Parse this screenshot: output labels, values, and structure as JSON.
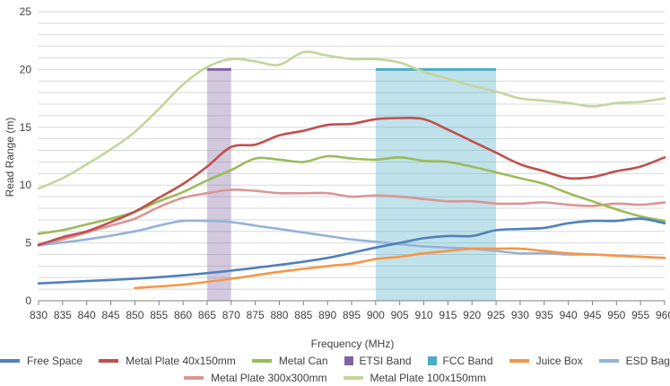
{
  "chart_data": {
    "type": "line",
    "xlabel": "Frequency (MHz)",
    "ylabel": "Read Range (m)",
    "xlim": [
      830,
      960
    ],
    "ylim": [
      0,
      25
    ],
    "xticks": [
      830,
      835,
      840,
      845,
      850,
      855,
      860,
      865,
      870,
      875,
      880,
      885,
      890,
      895,
      900,
      905,
      910,
      915,
      920,
      925,
      930,
      935,
      940,
      945,
      950,
      955,
      960
    ],
    "yticks": [
      0,
      5,
      10,
      15,
      20,
      25
    ],
    "grid": true,
    "legend_position": "bottom",
    "bands": [
      {
        "name": "ETSI Band",
        "x_range": [
          865,
          870
        ],
        "value": 20,
        "color": "#8064a2"
      },
      {
        "name": "FCC Band",
        "x_range": [
          900,
          925
        ],
        "value": 20,
        "color": "#4bacc6"
      }
    ],
    "series": [
      {
        "name": "Free Space",
        "color": "#4f81bd",
        "x": [
          830,
          840,
          850,
          860,
          870,
          880,
          890,
          900,
          905,
          910,
          915,
          920,
          925,
          930,
          935,
          940,
          945,
          950,
          955,
          960
        ],
        "y": [
          1.5,
          1.7,
          1.9,
          2.2,
          2.6,
          3.1,
          3.7,
          4.6,
          5.0,
          5.4,
          5.6,
          5.6,
          6.1,
          6.2,
          6.3,
          6.7,
          6.9,
          6.9,
          7.1,
          6.7
        ]
      },
      {
        "name": "Metal Plate 40x150mm",
        "color": "#c0504d",
        "x": [
          830,
          835,
          840,
          845,
          850,
          855,
          860,
          865,
          870,
          875,
          880,
          885,
          890,
          895,
          900,
          905,
          910,
          915,
          920,
          925,
          930,
          935,
          940,
          945,
          950,
          955,
          960
        ],
        "y": [
          4.8,
          5.5,
          6.0,
          6.8,
          7.7,
          8.9,
          10.1,
          11.6,
          13.3,
          13.5,
          14.3,
          14.7,
          15.2,
          15.3,
          15.7,
          15.8,
          15.7,
          14.8,
          13.8,
          12.8,
          11.8,
          11.2,
          10.6,
          10.7,
          11.2,
          11.6,
          12.4
        ]
      },
      {
        "name": "Metal Can",
        "color": "#9bbb59",
        "x": [
          830,
          835,
          840,
          845,
          850,
          855,
          860,
          865,
          870,
          875,
          880,
          885,
          890,
          895,
          900,
          905,
          910,
          915,
          920,
          925,
          930,
          935,
          940,
          945,
          950,
          955,
          960
        ],
        "y": [
          5.8,
          6.1,
          6.6,
          7.1,
          7.7,
          8.6,
          9.4,
          10.4,
          11.3,
          12.3,
          12.2,
          12.0,
          12.5,
          12.3,
          12.2,
          12.4,
          12.1,
          12.0,
          11.6,
          11.1,
          10.6,
          10.1,
          9.3,
          8.6,
          7.9,
          7.3,
          6.9
        ]
      },
      {
        "name": "Juice Box",
        "color": "#f79646",
        "x": [
          850,
          860,
          870,
          880,
          890,
          895,
          900,
          905,
          910,
          915,
          920,
          925,
          930,
          935,
          940,
          945,
          950,
          955,
          960
        ],
        "y": [
          1.1,
          1.4,
          1.9,
          2.5,
          3.0,
          3.2,
          3.6,
          3.8,
          4.1,
          4.3,
          4.5,
          4.5,
          4.5,
          4.3,
          4.1,
          4.0,
          3.9,
          3.8,
          3.7
        ]
      },
      {
        "name": "ESD Bag",
        "color": "#95b3d7",
        "x": [
          830,
          840,
          850,
          855,
          860,
          865,
          870,
          875,
          880,
          885,
          890,
          895,
          900,
          905,
          910,
          915,
          920,
          925,
          930,
          935,
          940,
          945,
          950,
          955,
          960
        ],
        "y": [
          4.8,
          5.3,
          6.0,
          6.5,
          6.9,
          6.9,
          6.8,
          6.5,
          6.2,
          5.9,
          5.6,
          5.3,
          5.1,
          4.9,
          4.7,
          4.6,
          4.5,
          4.3,
          4.1,
          4.1,
          4.0,
          4.0,
          3.9,
          3.8,
          3.7
        ]
      },
      {
        "name": "Metal Plate 300x300mm",
        "color": "#da9694",
        "x": [
          830,
          835,
          840,
          845,
          850,
          855,
          860,
          865,
          870,
          875,
          880,
          885,
          890,
          895,
          900,
          905,
          910,
          915,
          920,
          925,
          930,
          935,
          940,
          945,
          950,
          955,
          960
        ],
        "y": [
          4.9,
          5.3,
          5.9,
          6.5,
          7.1,
          8.1,
          8.9,
          9.3,
          9.6,
          9.5,
          9.3,
          9.3,
          9.3,
          9.0,
          9.1,
          9.0,
          8.8,
          8.6,
          8.6,
          8.4,
          8.4,
          8.5,
          8.3,
          8.2,
          8.4,
          8.3,
          8.5
        ]
      },
      {
        "name": "Metal Plate 100x150mm",
        "color": "#c3d69b",
        "x": [
          830,
          835,
          840,
          845,
          850,
          855,
          860,
          865,
          870,
          875,
          880,
          885,
          890,
          895,
          900,
          905,
          910,
          915,
          920,
          925,
          930,
          935,
          940,
          945,
          950,
          955,
          960
        ],
        "y": [
          9.7,
          10.6,
          11.8,
          13.1,
          14.6,
          16.6,
          18.7,
          20.2,
          20.9,
          20.7,
          20.4,
          21.5,
          21.2,
          20.9,
          20.9,
          20.6,
          19.8,
          19.2,
          18.6,
          18.1,
          17.5,
          17.3,
          17.1,
          16.8,
          17.1,
          17.2,
          17.5
        ]
      }
    ]
  },
  "legend": {
    "rows": [
      [
        {
          "label": "Free Space",
          "color": "#4f81bd",
          "kind": "line"
        },
        {
          "label": "Metal Plate 40x150mm",
          "color": "#c0504d",
          "kind": "line"
        },
        {
          "label": "Metal Can",
          "color": "#9bbb59",
          "kind": "line"
        },
        {
          "label": "ETSI Band",
          "color": "#8064a2",
          "kind": "box"
        },
        {
          "label": "FCC Band",
          "color": "#4bacc6",
          "kind": "box"
        },
        {
          "label": "Juice Box",
          "color": "#f79646",
          "kind": "line"
        },
        {
          "label": "ESD Bag",
          "color": "#95b3d7",
          "kind": "line"
        }
      ],
      [
        {
          "label": "Metal Plate 300x300mm",
          "color": "#da9694",
          "kind": "line"
        },
        {
          "label": "Metal Plate 100x150mm",
          "color": "#c3d69b",
          "kind": "line"
        }
      ]
    ]
  }
}
